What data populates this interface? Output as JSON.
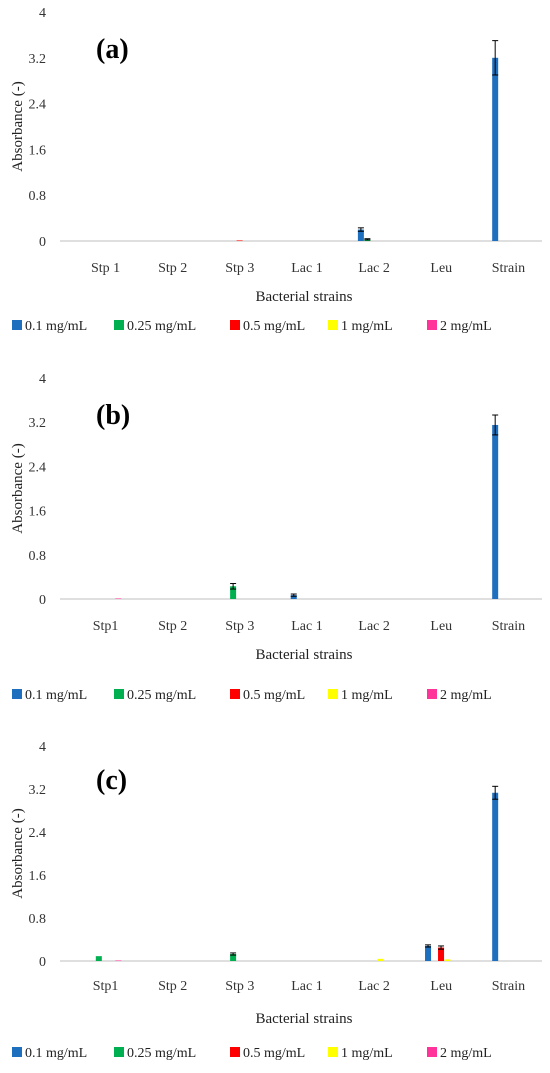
{
  "chart_data": [
    {
      "type": "bar",
      "panel_label": "(a)",
      "xlabel": "Bacterial strains",
      "ylabel": "Absorbance (-)",
      "ylim": [
        0,
        4
      ],
      "yticks": [
        "0",
        "0.8",
        "1.6",
        "2.4",
        "3.2",
        "4"
      ],
      "grid": false,
      "legend_position": "bottom",
      "categories": [
        "Stp 1",
        "Stp 2",
        "Stp 3",
        "Lac 1",
        "Lac 2",
        "Leu",
        "Strain"
      ],
      "series": [
        {
          "name": "0.1 mg/mL",
          "color": "#1f6fbf",
          "values": [
            0,
            0,
            0,
            0,
            0.2,
            0,
            3.2
          ],
          "errors": [
            0,
            0,
            0,
            0,
            0.03,
            0,
            0.3
          ]
        },
        {
          "name": "0.25 mg/mL",
          "color": "#00b050",
          "values": [
            0,
            0,
            0,
            0,
            0.03,
            0,
            0
          ],
          "errors": [
            0,
            0,
            0,
            0,
            0.01,
            0,
            0
          ]
        },
        {
          "name": "0.5 mg/mL",
          "color": "#ff0000",
          "values": [
            0,
            0,
            0.01,
            0,
            0,
            0,
            0
          ],
          "errors": [
            0,
            0,
            0,
            0,
            0,
            0,
            0
          ]
        },
        {
          "name": "1 mg/mL",
          "color": "#ffff00",
          "values": [
            0,
            0,
            0,
            0,
            0,
            0,
            0
          ],
          "errors": [
            0,
            0,
            0,
            0,
            0,
            0,
            0
          ]
        },
        {
          "name": "2 mg/mL",
          "color": "#ff3399",
          "values": [
            0,
            0,
            0,
            0,
            0,
            0,
            0
          ],
          "errors": [
            0,
            0,
            0,
            0,
            0,
            0,
            0
          ]
        }
      ]
    },
    {
      "type": "bar",
      "panel_label": "(b)",
      "xlabel": "Bacterial strains",
      "ylabel": "Absorbance (-)",
      "ylim": [
        0,
        4
      ],
      "yticks": [
        "0",
        "0.8",
        "1.6",
        "2.4",
        "3.2",
        "4"
      ],
      "grid": false,
      "legend_position": "bottom",
      "categories": [
        "Stp1",
        "Stp 2",
        "Stp 3",
        "Lac 1",
        "Lac 2",
        "Leu",
        "Strain"
      ],
      "series": [
        {
          "name": "0.1 mg/mL",
          "color": "#1f6fbf",
          "values": [
            0,
            0,
            0,
            0.07,
            0,
            0,
            3.15
          ],
          "errors": [
            0,
            0,
            0,
            0.02,
            0,
            0,
            0.18
          ]
        },
        {
          "name": "0.25 mg/mL",
          "color": "#00b050",
          "values": [
            0,
            0,
            0.23,
            0,
            0,
            0,
            0
          ],
          "errors": [
            0,
            0,
            0.05,
            0,
            0,
            0,
            0
          ]
        },
        {
          "name": "0.5 mg/mL",
          "color": "#ff0000",
          "values": [
            0,
            0,
            0,
            0,
            0,
            0,
            0
          ],
          "errors": [
            0,
            0,
            0,
            0,
            0,
            0,
            0
          ]
        },
        {
          "name": "1 mg/mL",
          "color": "#ffff00",
          "values": [
            0,
            0,
            0,
            0,
            0,
            0,
            0
          ],
          "errors": [
            0,
            0,
            0,
            0,
            0,
            0,
            0
          ]
        },
        {
          "name": "2 mg/mL",
          "color": "#ff3399",
          "values": [
            0.01,
            0,
            0,
            0,
            0,
            0,
            0
          ],
          "errors": [
            0,
            0,
            0,
            0,
            0,
            0,
            0
          ]
        }
      ]
    },
    {
      "type": "bar",
      "panel_label": "(c)",
      "xlabel": "Bacterial strains",
      "ylabel": "Absorbance (-)",
      "ylim": [
        0,
        4
      ],
      "yticks": [
        "0",
        "0.8",
        "1.6",
        "2.4",
        "3.2",
        "4"
      ],
      "grid": false,
      "legend_position": "bottom",
      "categories": [
        "Stp1",
        "Stp 2",
        "Stp 3",
        "Lac 1",
        "Lac 2",
        "Leu",
        "Strain"
      ],
      "series": [
        {
          "name": "0.1 mg/mL",
          "color": "#1f6fbf",
          "values": [
            0,
            0,
            0,
            0,
            0,
            0.28,
            3.13
          ],
          "errors": [
            0,
            0,
            0,
            0,
            0,
            0.02,
            0.12
          ]
        },
        {
          "name": "0.25 mg/mL",
          "color": "#00b050",
          "values": [
            0.09,
            0,
            0.13,
            0,
            0,
            0,
            0
          ],
          "errors": [
            0,
            0,
            0.02,
            0,
            0,
            0,
            0
          ]
        },
        {
          "name": "0.5 mg/mL",
          "color": "#ff0000",
          "values": [
            0,
            0,
            0,
            0,
            0,
            0.25,
            0
          ],
          "errors": [
            0,
            0,
            0,
            0,
            0,
            0.03,
            0
          ]
        },
        {
          "name": "1 mg/mL",
          "color": "#ffff00",
          "values": [
            0,
            0,
            0,
            0,
            0.04,
            0.03,
            0
          ],
          "errors": [
            0,
            0,
            0,
            0,
            0,
            0,
            0
          ]
        },
        {
          "name": "2 mg/mL",
          "color": "#ff3399",
          "values": [
            0.01,
            0,
            0,
            0,
            0,
            0,
            0
          ],
          "errors": [
            0,
            0,
            0,
            0,
            0,
            0,
            0
          ]
        }
      ]
    }
  ]
}
